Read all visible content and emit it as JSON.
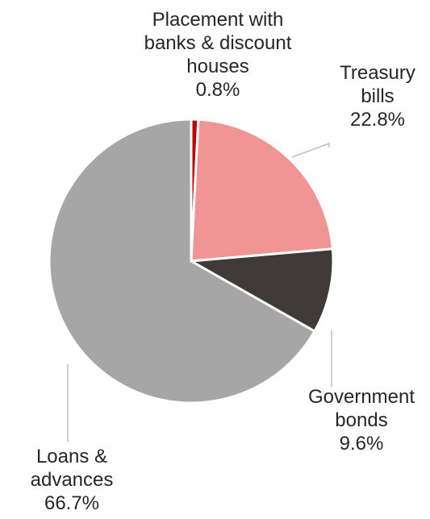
{
  "chart_data": {
    "type": "pie",
    "title": "",
    "legend": "none",
    "slices": [
      {
        "name": "Placement with banks & discount houses",
        "label_lines": [
          "Placement with",
          "banks & discount",
          "houses"
        ],
        "value": 0.8,
        "value_label": "0.8%",
        "color": "#C00000"
      },
      {
        "name": "Treasury bills",
        "label_lines": [
          "Treasury",
          "bills"
        ],
        "value": 22.8,
        "value_label": "22.8%",
        "color": "#F09593"
      },
      {
        "name": "Government bonds",
        "label_lines": [
          "Government",
          "bonds"
        ],
        "value": 9.6,
        "value_label": "9.6%",
        "color": "#403B38"
      },
      {
        "name": "Loans & advances",
        "label_lines": [
          "Loans &",
          "advances"
        ],
        "value": 66.7,
        "value_label": "66.7%",
        "color": "#A6A6A6"
      }
    ]
  }
}
